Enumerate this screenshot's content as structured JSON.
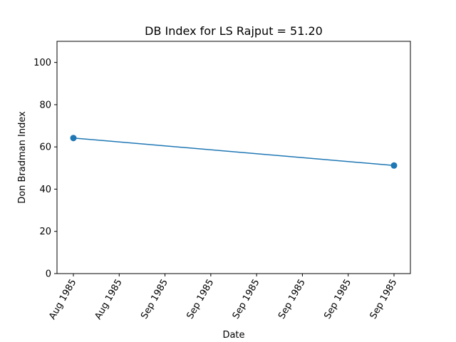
{
  "chart_data": {
    "type": "line",
    "title": "DB Index for LS Rajput = 51.20",
    "xlabel": "Date",
    "ylabel": "Don Bradman Index",
    "x_tick_labels": [
      "Aug 1985",
      "Aug 1985",
      "Sep 1985",
      "Sep 1985",
      "Sep 1985",
      "Sep 1985",
      "Sep 1985",
      "Sep 1985"
    ],
    "y_ticks": [
      0,
      20,
      40,
      60,
      80,
      100
    ],
    "ylim": [
      0,
      110
    ],
    "grid": false,
    "series": [
      {
        "color": "#1f77b4",
        "points": [
          {
            "tick": 0,
            "value": 64.2
          },
          {
            "tick": 7,
            "value": 51.2
          }
        ]
      }
    ]
  }
}
